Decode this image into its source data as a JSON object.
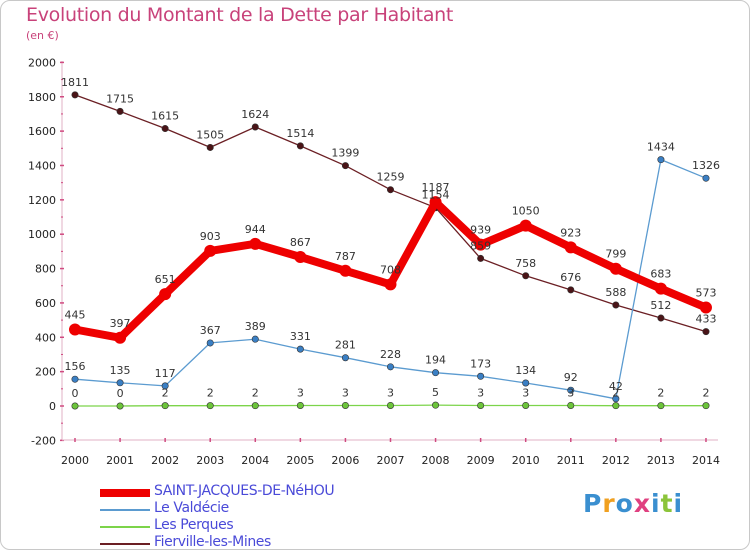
{
  "title": "Evolution du Montant de la Dette par Habitant",
  "unit": "(en €)",
  "logo": "Proxiti",
  "chart_data": {
    "type": "line",
    "x": [
      "2000",
      "2001",
      "2002",
      "2003",
      "2004",
      "2005",
      "2006",
      "2007",
      "2008",
      "2009",
      "2010",
      "2011",
      "2012",
      "2013",
      "2014"
    ],
    "ylim": [
      -200,
      2000
    ],
    "yticks": [
      -200,
      0,
      200,
      400,
      600,
      800,
      1000,
      1200,
      1400,
      1600,
      1800,
      2000
    ],
    "grid": false,
    "legend_position": "bottom-left",
    "series": [
      {
        "name": "Fierville-les-Mines",
        "color": "#6b1f24",
        "marker_fill": "#4a1417",
        "values": [
          1811,
          1715,
          1615,
          1505,
          1624,
          1514,
          1399,
          1259,
          1154,
          859,
          758,
          676,
          588,
          512,
          433
        ]
      },
      {
        "name": "Le Valdécie",
        "color": "#5b9bd0",
        "marker_fill": "#3a7fc4",
        "values": [
          156,
          135,
          117,
          367,
          389,
          331,
          281,
          228,
          194,
          173,
          134,
          92,
          42,
          1434,
          1326
        ]
      },
      {
        "name": "Les Perques",
        "color": "#7cd44a",
        "marker_fill": "#6cc43a",
        "values": [
          0,
          0,
          2,
          2,
          2,
          3,
          3,
          3,
          5,
          3,
          3,
          3,
          2,
          2,
          2
        ]
      },
      {
        "name": "SAINT-JACQUES-DE-NéHOU",
        "color": "#ee0000",
        "marker_fill": "#ee0000",
        "values": [
          445,
          397,
          651,
          903,
          944,
          867,
          787,
          708,
          1187,
          939,
          1050,
          923,
          799,
          683,
          573
        ]
      }
    ]
  }
}
